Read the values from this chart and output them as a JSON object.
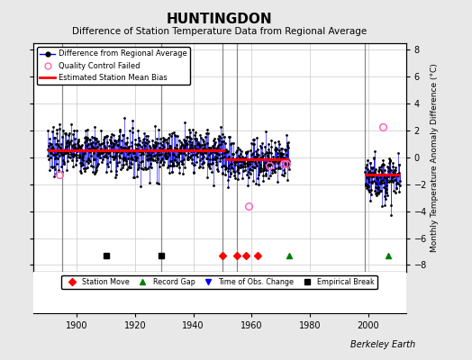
{
  "title": "HUNTINGDON",
  "subtitle": "Difference of Station Temperature Data from Regional Average",
  "ylabel": "Monthly Temperature Anomaly Difference (°C)",
  "credit": "Berkeley Earth",
  "xlim": [
    1885,
    2013
  ],
  "ylim": [
    -8.5,
    8.5
  ],
  "yticks": [
    -8,
    -6,
    -4,
    -2,
    0,
    2,
    4,
    6,
    8
  ],
  "xticks": [
    1900,
    1920,
    1940,
    1960,
    1980,
    2000
  ],
  "bg_color": "#e8e8e8",
  "plot_bg_color": "#ffffff",
  "grid_color": "#c8c8c8",
  "data_start_year": 1890,
  "gap_start": 1973,
  "gap_end": 1999,
  "data_end_year": 2011,
  "seg1_bias": 0.55,
  "seg2_bias": -0.15,
  "seg3_bias": -1.3,
  "bias_segments": [
    {
      "x_start": 1890,
      "x_end": 1951,
      "bias": 0.55
    },
    {
      "x_start": 1951,
      "x_end": 1973,
      "bias": -0.15
    },
    {
      "x_start": 1999,
      "x_end": 2011,
      "bias": -1.3
    }
  ],
  "vertical_lines": [
    1895,
    1929,
    1950,
    1955,
    1999
  ],
  "station_moves": [
    1950,
    1955,
    1958,
    1962
  ],
  "record_gaps": [
    1973,
    2007
  ],
  "empirical_breaks": [
    1910,
    1929
  ],
  "qc_positions": [
    [
      1894,
      -1.3
    ],
    [
      1959,
      -3.6
    ],
    [
      1966,
      -0.6
    ],
    [
      1971,
      -0.5
    ],
    [
      1972,
      -0.5
    ],
    [
      2005,
      2.3
    ]
  ],
  "noise_std": 0.85,
  "seed": 7,
  "trend_slope": -0.002
}
